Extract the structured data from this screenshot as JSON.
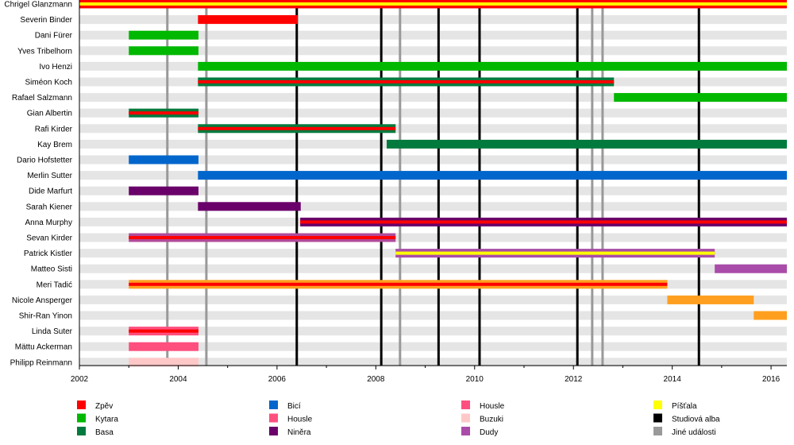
{
  "chart_data": {
    "type": "timeline",
    "xlim": [
      2002,
      2016.32
    ],
    "xticks": [
      2002,
      2004,
      2006,
      2008,
      2010,
      2012,
      2014,
      2016
    ],
    "colors": {
      "zpev": "#ff0000",
      "kytara": "#00b800",
      "basa": "#007a3d",
      "bici": "#0066cc",
      "housle": "#ff4f7f",
      "housle2": "#ff4f7f",
      "ninera": "#6a006a",
      "buzuki": "#ffc8c8",
      "dudy": "#a94ca9",
      "pistala": "#ffff00",
      "studio": "#000000",
      "other": "#999999",
      "orange": "#ff9f1f",
      "sevan": "#b04a9a"
    },
    "members": [
      {
        "name": "Chrigel Glanzmann",
        "bars": [
          {
            "from": 2002,
            "to": 2016.32,
            "color": "zpev",
            "stripe": "pistala"
          }
        ]
      },
      {
        "name": "Severin Binder",
        "bars": [
          {
            "from": 2004.4,
            "to": 2006.42,
            "color": "zpev"
          }
        ]
      },
      {
        "name": "Dani Fürer",
        "bars": [
          {
            "from": 2003,
            "to": 2004.41,
            "color": "kytara"
          }
        ]
      },
      {
        "name": "Yves Tribelhorn",
        "bars": [
          {
            "from": 2003,
            "to": 2004.41,
            "color": "kytara"
          }
        ]
      },
      {
        "name": "Ivo Henzi",
        "bars": [
          {
            "from": 2004.4,
            "to": 2016.32,
            "color": "kytara"
          }
        ]
      },
      {
        "name": "Siméon Koch",
        "bars": [
          {
            "from": 2004.4,
            "to": 2012.82,
            "color": "basa",
            "stripe": "zpev"
          }
        ]
      },
      {
        "name": "Rafael Salzmann",
        "bars": [
          {
            "from": 2012.82,
            "to": 2016.32,
            "color": "kytara"
          }
        ]
      },
      {
        "name": "Gian Albertin",
        "bars": [
          {
            "from": 2003,
            "to": 2004.41,
            "color": "basa",
            "stripe": "zpev"
          }
        ]
      },
      {
        "name": "Rafi Kirder",
        "bars": [
          {
            "from": 2004.4,
            "to": 2008.4,
            "color": "basa",
            "stripe": "zpev"
          }
        ]
      },
      {
        "name": "Kay Brem",
        "bars": [
          {
            "from": 2008.22,
            "to": 2016.32,
            "color": "basa"
          }
        ]
      },
      {
        "name": "Dario Hofstetter",
        "bars": [
          {
            "from": 2003,
            "to": 2004.41,
            "color": "bici"
          }
        ]
      },
      {
        "name": "Merlin Sutter",
        "bars": [
          {
            "from": 2004.4,
            "to": 2016.32,
            "color": "bici"
          }
        ]
      },
      {
        "name": "Dide Marfurt",
        "bars": [
          {
            "from": 2003,
            "to": 2004.41,
            "color": "ninera"
          }
        ]
      },
      {
        "name": "Sarah Kiener",
        "bars": [
          {
            "from": 2004.4,
            "to": 2006.48,
            "color": "ninera"
          }
        ]
      },
      {
        "name": "Anna Murphy",
        "bars": [
          {
            "from": 2006.47,
            "to": 2016.32,
            "color": "ninera",
            "stripe": "zpev"
          }
        ]
      },
      {
        "name": "Sevan Kirder",
        "bars": [
          {
            "from": 2003,
            "to": 2008.4,
            "color": "sevan",
            "stripe": "zpev"
          }
        ]
      },
      {
        "name": "Patrick Kistler",
        "bars": [
          {
            "from": 2008.4,
            "to": 2014.86,
            "color": "dudy",
            "stripe": "pistala"
          }
        ]
      },
      {
        "name": "Matteo Sisti",
        "bars": [
          {
            "from": 2014.86,
            "to": 2016.32,
            "color": "dudy"
          }
        ]
      },
      {
        "name": "Meri Tadić",
        "bars": [
          {
            "from": 2003,
            "to": 2013.9,
            "color": "orange",
            "stripe": "zpev"
          }
        ]
      },
      {
        "name": "Nicole Ansperger",
        "bars": [
          {
            "from": 2013.9,
            "to": 2015.65,
            "color": "orange"
          }
        ]
      },
      {
        "name": "Shir-Ran Yinon",
        "bars": [
          {
            "from": 2015.65,
            "to": 2016.32,
            "color": "orange"
          }
        ]
      },
      {
        "name": "Linda Suter",
        "bars": [
          {
            "from": 2003,
            "to": 2004.41,
            "color": "housle",
            "stripe": "zpev"
          }
        ]
      },
      {
        "name": "Mättu Ackerman",
        "bars": [
          {
            "from": 2003,
            "to": 2004.41,
            "color": "housle"
          }
        ]
      },
      {
        "name": "Philipp Reinmann",
        "bars": [
          {
            "from": 2003,
            "to": 2004.41,
            "color": "buzuki"
          }
        ]
      }
    ],
    "studio_albums": [
      2006.4,
      2008.11,
      2009.27,
      2010.1,
      2012.08,
      2014.54
    ],
    "other_events": [
      2003.78,
      2004.57,
      2008.49,
      2012.38,
      2012.59
    ],
    "legend": [
      {
        "label": "Zpěv",
        "color": "zpev"
      },
      {
        "label": "Kytara",
        "color": "kytara"
      },
      {
        "label": "Basa",
        "color": "basa"
      },
      {
        "label": "Bicí",
        "color": "bici"
      },
      {
        "label": "Housle",
        "color": "housle"
      },
      {
        "label": "Niněra",
        "color": "ninera"
      },
      {
        "label": "Housle",
        "color": "housle2"
      },
      {
        "label": "Buzuki",
        "color": "buzuki"
      },
      {
        "label": "Dudy",
        "color": "dudy"
      },
      {
        "label": "Píšťala",
        "color": "pistala"
      },
      {
        "label": "Studiová alba",
        "color": "studio"
      },
      {
        "label": "Jiné události",
        "color": "other"
      }
    ]
  }
}
